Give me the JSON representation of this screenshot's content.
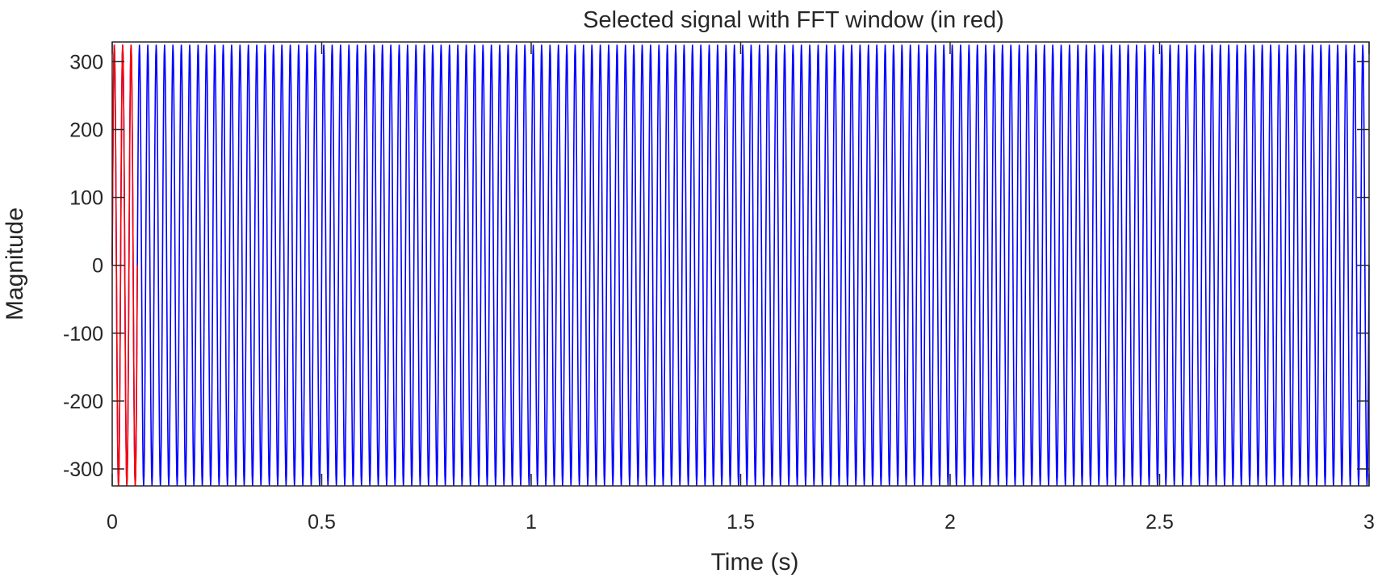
{
  "chart_data": {
    "type": "line",
    "title": "Selected signal with FFT window (in red)",
    "xlabel": "Time (s)",
    "ylabel": "Magnitude",
    "xlim": [
      0,
      3
    ],
    "ylim": [
      -325,
      329
    ],
    "xticks": [
      "0",
      "0.5",
      "1",
      "1.5",
      "2",
      "2.5",
      "3"
    ],
    "xtick_values": [
      0,
      0.5,
      1,
      1.5,
      2,
      2.5,
      3
    ],
    "yticks": [
      "-300",
      "-200",
      "-100",
      "0",
      "100",
      "200",
      "300"
    ],
    "ytick_values": [
      -300,
      -200,
      -100,
      0,
      100,
      200,
      300
    ],
    "grid": false,
    "series": [
      {
        "kind": "sine",
        "frequency_hz": 50,
        "amplitude": 325,
        "t_start": 0,
        "t_end": 3,
        "color": "#0000ff"
      },
      {
        "kind": "sine",
        "frequency_hz": 50,
        "amplitude": 325,
        "t_start": 0,
        "t_end": 0.06,
        "color": "#ff0000"
      }
    ]
  }
}
